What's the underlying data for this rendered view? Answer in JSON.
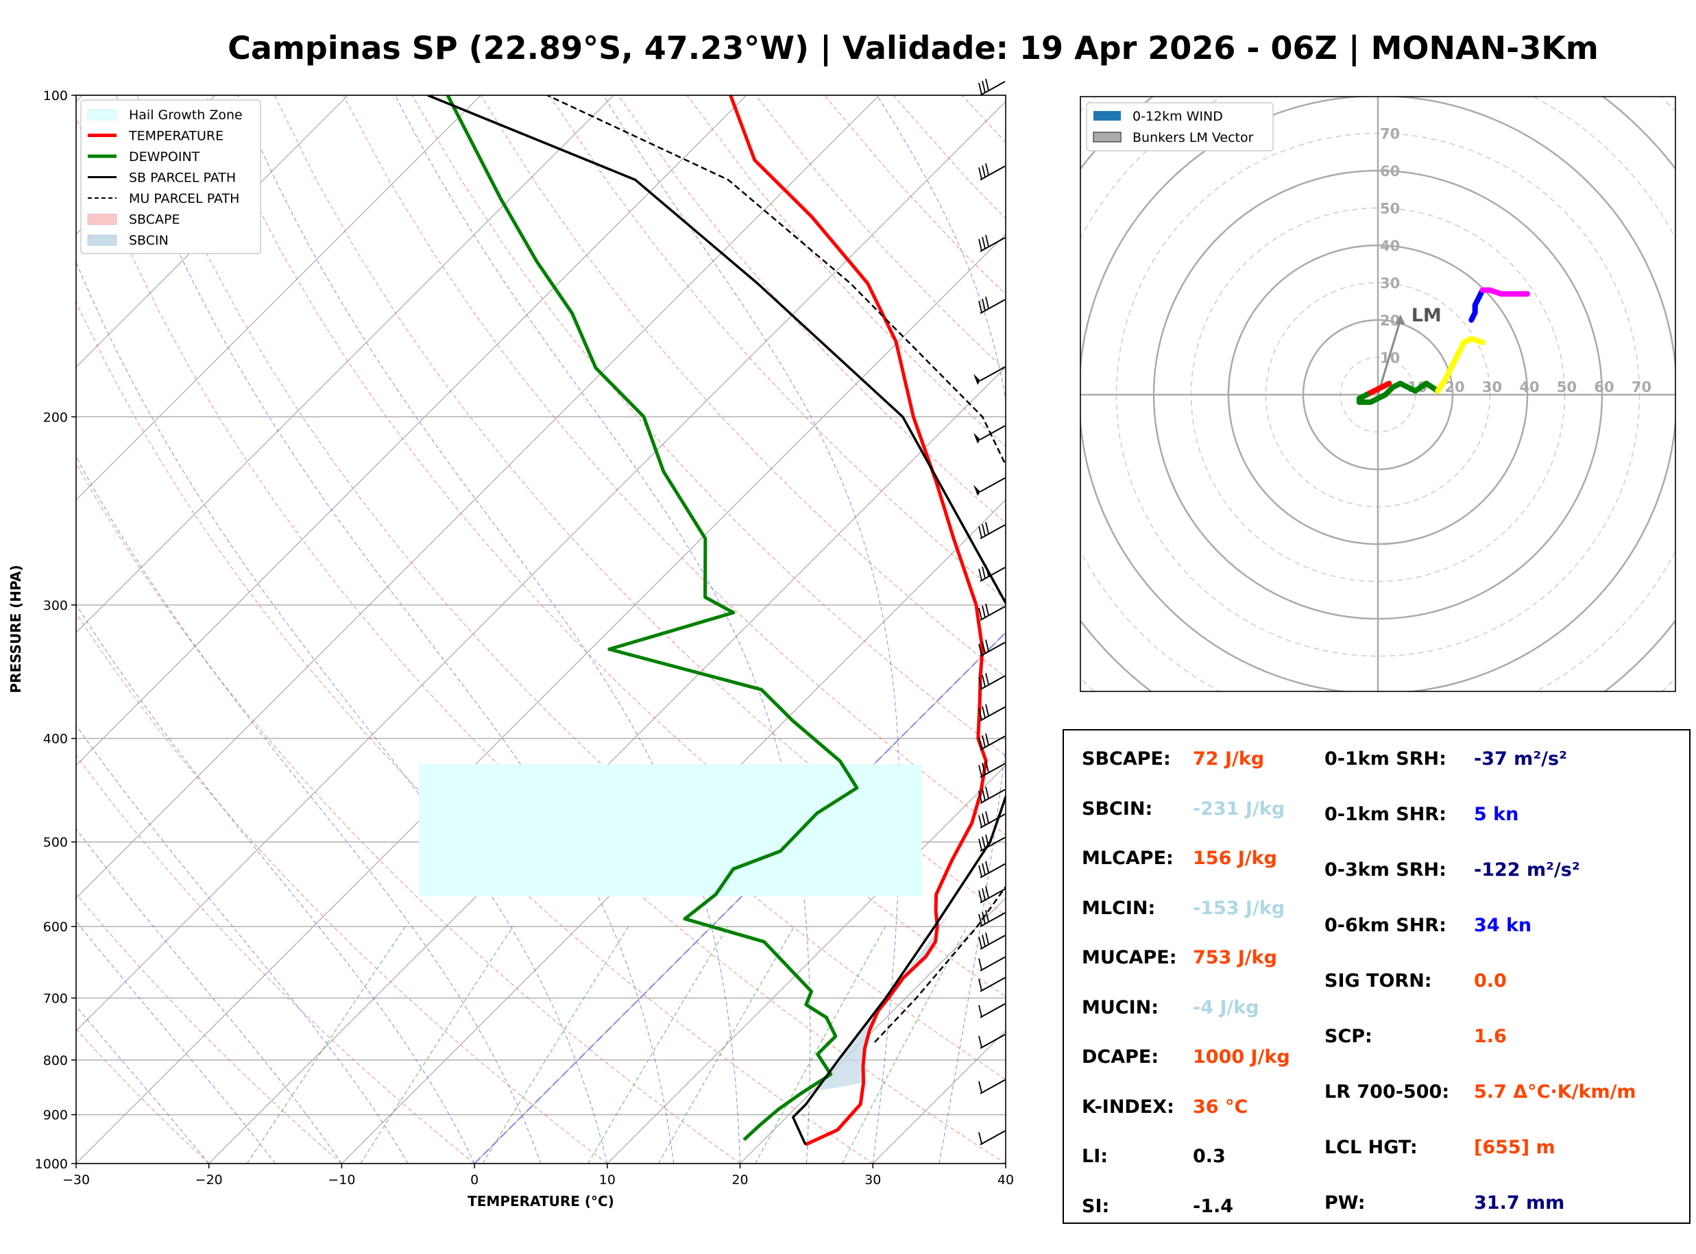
{
  "title": "Campinas SP (22.89°S, 47.23°W) | Validade: 19 Apr 2026 - 06Z | MONAN-3Km",
  "colors": {
    "temperature": "#ff0000",
    "dewpoint": "#008000",
    "sb_parcel": "#000000",
    "mu_parcel": "#000000",
    "hail_zone": "#e0ffff",
    "sbcin_fill": "#c8dcea",
    "dry_adiabat": "#ff6666",
    "moist_adiabat": "#6666ff",
    "mixing_ratio": "#33aa33",
    "isotherm": "#a8a8a8",
    "orange_value": "#ff4500",
    "lightblue_value": "#add8e6",
    "navy_value": "#000080",
    "blue_value": "#0000ff"
  },
  "chart_data": [
    {
      "type": "line",
      "subtype": "skew-t log-p",
      "xlabel": "TEMPERATURE (°C)",
      "ylabel": "PRESSURE (HPA)",
      "xlim": [
        -30,
        40
      ],
      "ylim": [
        1000,
        100
      ],
      "x_ticks": [
        -30,
        -20,
        -10,
        0,
        10,
        20,
        30,
        40
      ],
      "y_ticks": [
        100,
        200,
        300,
        400,
        500,
        600,
        700,
        800,
        900,
        1000
      ],
      "legend": [
        "Hail Growth Zone",
        "TEMPERATURE",
        "DEWPOINT",
        "SB PARCEL PATH",
        "MU PARCEL PATH",
        "SBCAPE",
        "SBCIN"
      ],
      "legend_position": "top-left",
      "hail_growth_zone_hpa": [
        562,
        423
      ],
      "sbcin_layer_hpa": [
        855,
        583
      ],
      "series": [
        {
          "name": "TEMPERATURE",
          "points": [
            [
              23.5,
              960
            ],
            [
              24.8,
              930
            ],
            [
              24.6,
              880
            ],
            [
              23.2,
              840
            ],
            [
              21.9,
              810
            ],
            [
              20.7,
              780
            ],
            [
              19.7,
              750
            ],
            [
              18.9,
              720
            ],
            [
              18.7,
              700
            ],
            [
              18.3,
              670
            ],
            [
              18.4,
              640
            ],
            [
              18.0,
              620
            ],
            [
              17.0,
              600
            ],
            [
              15.7,
              580
            ],
            [
              14.5,
              560
            ],
            [
              13.1,
              520
            ],
            [
              11.8,
              480
            ],
            [
              10.2,
              450
            ],
            [
              8.2,
              420
            ],
            [
              5.9,
              400
            ],
            [
              3.3,
              370
            ],
            [
              1.4,
              350
            ],
            [
              -0.5,
              330
            ],
            [
              -4.3,
              300
            ],
            [
              -11.0,
              260
            ],
            [
              -16.6,
              230
            ],
            [
              -23.2,
              200
            ],
            [
              -30.2,
              170
            ],
            [
              -36.7,
              150
            ],
            [
              -45.9,
              130
            ],
            [
              -54.5,
              115
            ],
            [
              -61.2,
              100
            ]
          ]
        },
        {
          "name": "DEWPOINT",
          "points": [
            [
              18.5,
              950
            ],
            [
              18.6,
              920
            ],
            [
              18.8,
              890
            ],
            [
              19.3,
              860
            ],
            [
              20.1,
              825
            ],
            [
              17.6,
              790
            ],
            [
              17.6,
              760
            ],
            [
              15.5,
              730
            ],
            [
              13.0,
              710
            ],
            [
              12.4,
              690
            ],
            [
              5.1,
              620
            ],
            [
              -2.6,
              590
            ],
            [
              -2.1,
              560
            ],
            [
              -2.7,
              530
            ],
            [
              -0.5,
              510
            ],
            [
              -0.6,
              470
            ],
            [
              0.5,
              445
            ],
            [
              -2.8,
              420
            ],
            [
              -9.4,
              385
            ],
            [
              -14.1,
              360
            ],
            [
              -28.6,
              330
            ],
            [
              -22.0,
              305
            ],
            [
              -25.3,
              295
            ],
            [
              -29.7,
              260
            ],
            [
              -37.9,
              225
            ],
            [
              -43.5,
              200
            ],
            [
              -50.8,
              180
            ],
            [
              -56.7,
              160
            ],
            [
              -63.3,
              143
            ],
            [
              -70.7,
              125
            ],
            [
              -82.5,
              100
            ]
          ]
        },
        {
          "name": "SB PARCEL PATH",
          "points": [
            [
              23.5,
              960
            ],
            [
              20.5,
              905
            ],
            [
              20.5,
              880
            ],
            [
              19.6,
              800
            ],
            [
              18.5,
              700
            ],
            [
              16.8,
              600
            ],
            [
              14.6,
              500
            ],
            [
              9.5,
              400
            ],
            [
              -2.0,
              300
            ],
            [
              -24.0,
              200
            ],
            [
              -45.0,
              150
            ],
            [
              -62.0,
              120
            ],
            [
              -84.0,
              100
            ]
          ]
        },
        {
          "name": "MU PARCEL PATH",
          "points": [
            [
              21.0,
              770
            ],
            [
              20.8,
              700
            ],
            [
              20.0,
              600
            ],
            [
              18.2,
              500
            ],
            [
              13.5,
              400
            ],
            [
              3.0,
              300
            ],
            [
              -18.0,
              200
            ],
            [
              -38.0,
              150
            ],
            [
              -55.0,
              120
            ],
            [
              -75.0,
              100
            ]
          ]
        }
      ],
      "wind_barbs_hpa": [
        100,
        120,
        140,
        160,
        185,
        210,
        235,
        260,
        285,
        310,
        335,
        360,
        385,
        410,
        435,
        460,
        485,
        510,
        540,
        570,
        600,
        630,
        660,
        690,
        730,
        780,
        860,
        960
      ]
    },
    {
      "type": "line",
      "subtype": "hodograph",
      "legend": [
        "0-12km WIND",
        "Bunkers LM Vector"
      ],
      "legend_position": "top-left",
      "ring_labels": [
        "10",
        "20",
        "30",
        "40",
        "50",
        "60",
        "70"
      ],
      "lm_label": "LM",
      "lm_vector": [
        6,
        20
      ],
      "series": [
        {
          "name": "0-1km",
          "color": "#ff0000",
          "points": [
            [
              -3,
              0
            ],
            [
              -1,
              1
            ],
            [
              1,
              2
            ],
            [
              3,
              3
            ]
          ]
        },
        {
          "name": "1-3km",
          "color": "#008000",
          "points": [
            [
              -3,
              0
            ],
            [
              -5,
              -1
            ],
            [
              -5,
              -2
            ],
            [
              -2,
              -2
            ],
            [
              2,
              0
            ],
            [
              4,
              2
            ],
            [
              6,
              3
            ],
            [
              8,
              2
            ],
            [
              10,
              1
            ],
            [
              13,
              3
            ],
            [
              16,
              1
            ]
          ]
        },
        {
          "name": "3-6km",
          "color": "#ffff00",
          "points": [
            [
              16,
              1
            ],
            [
              18,
              4
            ],
            [
              20,
              8
            ],
            [
              22,
              12
            ],
            [
              23,
              14
            ],
            [
              25,
              15
            ],
            [
              28,
              14
            ]
          ]
        },
        {
          "name": "6-9km",
          "color": "#0000ff",
          "points": [
            [
              25,
              20
            ],
            [
              26,
              22
            ],
            [
              26,
              24
            ],
            [
              27,
              26
            ],
            [
              28,
              28
            ]
          ]
        },
        {
          "name": "9-12km",
          "color": "#ff00ff",
          "points": [
            [
              28,
              28
            ],
            [
              30,
              28
            ],
            [
              33,
              27
            ],
            [
              36,
              27
            ],
            [
              40,
              27
            ]
          ]
        }
      ]
    }
  ],
  "stats": {
    "left": [
      {
        "label": "SBCAPE:",
        "value": "72 J/kg",
        "color": "#ff4500"
      },
      {
        "label": "SBCIN:",
        "value": "-231 J/kg",
        "color": "#add8e6"
      },
      {
        "label": "MLCAPE:",
        "value": "156 J/kg",
        "color": "#ff4500"
      },
      {
        "label": "MLCIN:",
        "value": "-153 J/kg",
        "color": "#add8e6"
      },
      {
        "label": "MUCAPE:",
        "value": "753 J/kg",
        "color": "#ff4500"
      },
      {
        "label": "MUCIN:",
        "value": "-4 J/kg",
        "color": "#add8e6"
      },
      {
        "label": "DCAPE:",
        "value": "1000 J/kg",
        "color": "#ff4500"
      },
      {
        "label": "K-INDEX:",
        "value": "36 °C",
        "color": "#ff4500"
      },
      {
        "label": "LI:",
        "value": "0.3",
        "color": "#000000"
      },
      {
        "label": "SI:",
        "value": "-1.4",
        "color": "#000000"
      }
    ],
    "right": [
      {
        "label": "0-1km SRH:",
        "value": "-37 m²/s²",
        "color": "#000080"
      },
      {
        "label": "0-1km SHR:",
        "value": "5 kn",
        "color": "#0000ff"
      },
      {
        "label": "0-3km SRH:",
        "value": "-122 m²/s²",
        "color": "#000080"
      },
      {
        "label": "0-6km SHR:",
        "value": "34 kn",
        "color": "#0000ff"
      },
      {
        "label": "SIG TORN:",
        "value": "0.0",
        "color": "#ff4500"
      },
      {
        "label": "SCP:",
        "value": "1.6",
        "color": "#ff4500"
      },
      {
        "label": "LR 700-500:",
        "value": "5.7 Δ°C·K/km/m",
        "color": "#ff4500"
      },
      {
        "label": "LCL HGT:",
        "value": "[655] m",
        "color": "#ff4500"
      },
      {
        "label": "PW:",
        "value": "31.7 mm",
        "color": "#000080"
      }
    ]
  }
}
